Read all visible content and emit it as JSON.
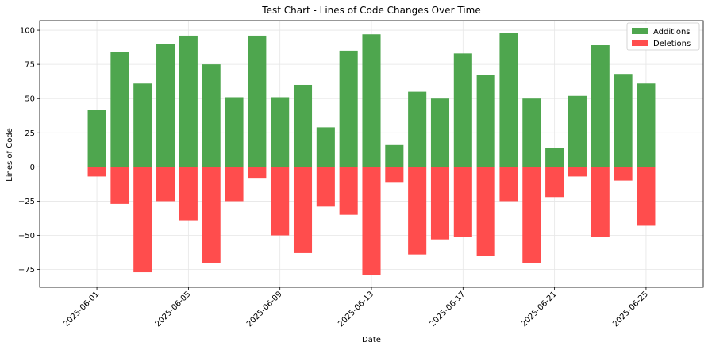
{
  "chart_data": {
    "type": "bar",
    "title": "Test Chart - Lines of Code Changes Over Time",
    "xlabel": "Date",
    "ylabel": "Lines of Code",
    "x": [
      "2025-06-01",
      "2025-06-02",
      "2025-06-03",
      "2025-06-04",
      "2025-06-05",
      "2025-06-06",
      "2025-06-07",
      "2025-06-08",
      "2025-06-09",
      "2025-06-10",
      "2025-06-11",
      "2025-06-12",
      "2025-06-13",
      "2025-06-14",
      "2025-06-15",
      "2025-06-16",
      "2025-06-17",
      "2025-06-18",
      "2025-06-19",
      "2025-06-20",
      "2025-06-21",
      "2025-06-22",
      "2025-06-23",
      "2025-06-24",
      "2025-06-25"
    ],
    "xticks": [
      "2025-06-01",
      "2025-06-05",
      "2025-06-09",
      "2025-06-13",
      "2025-06-17",
      "2025-06-21",
      "2025-06-25"
    ],
    "yticks": [
      -75,
      -50,
      -25,
      0,
      25,
      50,
      75,
      100
    ],
    "xlim": [
      "2025-05-29T12:00",
      "2025-06-27T12:00"
    ],
    "ylim": [
      -88,
      107
    ],
    "grid": true,
    "legend_position": "top-right",
    "series": [
      {
        "name": "Additions",
        "color": "#4ea64e",
        "values": [
          42,
          84,
          61,
          90,
          96,
          75,
          51,
          96,
          51,
          60,
          29,
          85,
          97,
          16,
          55,
          50,
          83,
          67,
          98,
          50,
          14,
          52,
          89,
          68,
          61
        ]
      },
      {
        "name": "Deletions",
        "color": "#ff4d4d",
        "values": [
          -7,
          -27,
          -77,
          -25,
          -39,
          -70,
          -25,
          -8,
          -50,
          -63,
          -29,
          -35,
          -79,
          -11,
          -64,
          -53,
          -51,
          -65,
          -25,
          -70,
          -22,
          -7,
          -51,
          -10,
          -43
        ]
      }
    ]
  }
}
